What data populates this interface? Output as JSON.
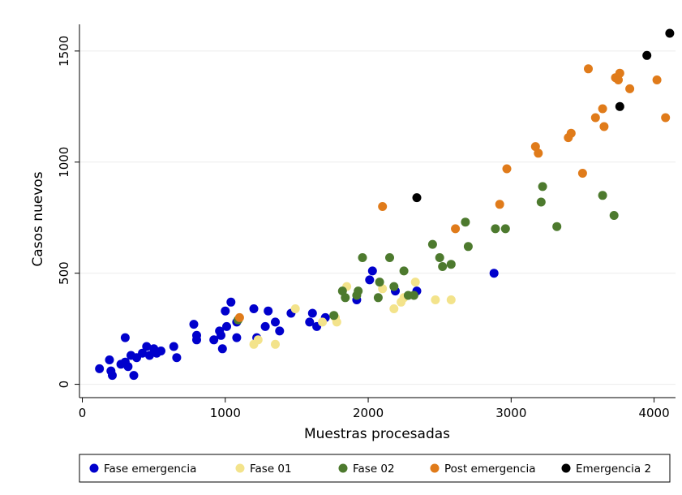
{
  "chart_data": {
    "type": "scatter",
    "title": "",
    "xlabel": "Muestras procesadas",
    "ylabel": "Casos nuevos",
    "xlim": [
      -20,
      4150
    ],
    "ylim": [
      -60,
      1620
    ],
    "xticks": [
      0,
      1000,
      2000,
      3000,
      4000
    ],
    "yticks": [
      0,
      500,
      1000,
      1500
    ],
    "grid": true,
    "legend_position": "bottom",
    "series": [
      {
        "name": "Fase emergencia",
        "color": "#0000cc",
        "points": [
          [
            120,
            70
          ],
          [
            190,
            110
          ],
          [
            200,
            60
          ],
          [
            210,
            40
          ],
          [
            270,
            90
          ],
          [
            300,
            210
          ],
          [
            300,
            100
          ],
          [
            320,
            80
          ],
          [
            340,
            130
          ],
          [
            360,
            40
          ],
          [
            380,
            120
          ],
          [
            420,
            140
          ],
          [
            450,
            170
          ],
          [
            470,
            130
          ],
          [
            500,
            160
          ],
          [
            520,
            140
          ],
          [
            550,
            150
          ],
          [
            640,
            170
          ],
          [
            660,
            120
          ],
          [
            780,
            270
          ],
          [
            800,
            220
          ],
          [
            800,
            200
          ],
          [
            920,
            200
          ],
          [
            960,
            240
          ],
          [
            970,
            220
          ],
          [
            980,
            160
          ],
          [
            1000,
            330
          ],
          [
            1010,
            260
          ],
          [
            1040,
            370
          ],
          [
            1080,
            280
          ],
          [
            1080,
            210
          ],
          [
            1200,
            340
          ],
          [
            1220,
            210
          ],
          [
            1280,
            260
          ],
          [
            1300,
            330
          ],
          [
            1350,
            280
          ],
          [
            1380,
            240
          ],
          [
            1460,
            320
          ],
          [
            1590,
            280
          ],
          [
            1610,
            320
          ],
          [
            1640,
            260
          ],
          [
            1700,
            300
          ],
          [
            1920,
            380
          ],
          [
            2010,
            470
          ],
          [
            2030,
            510
          ],
          [
            2190,
            420
          ],
          [
            2340,
            420
          ],
          [
            2880,
            500
          ]
        ]
      },
      {
        "name": "Fase 01",
        "color": "#f3e38b",
        "points": [
          [
            1200,
            180
          ],
          [
            1230,
            200
          ],
          [
            1350,
            180
          ],
          [
            1490,
            340
          ],
          [
            1680,
            280
          ],
          [
            1770,
            300
          ],
          [
            1780,
            280
          ],
          [
            1850,
            440
          ],
          [
            2100,
            430
          ],
          [
            2180,
            340
          ],
          [
            2230,
            370
          ],
          [
            2250,
            390
          ],
          [
            2330,
            460
          ],
          [
            2470,
            380
          ],
          [
            2580,
            380
          ]
        ]
      },
      {
        "name": "Fase 02",
        "color": "#4d7a2e",
        "points": [
          [
            1090,
            290
          ],
          [
            1760,
            310
          ],
          [
            1820,
            420
          ],
          [
            1840,
            390
          ],
          [
            1920,
            400
          ],
          [
            1930,
            420
          ],
          [
            1960,
            570
          ],
          [
            2070,
            390
          ],
          [
            2080,
            460
          ],
          [
            2150,
            570
          ],
          [
            2180,
            440
          ],
          [
            2250,
            510
          ],
          [
            2280,
            400
          ],
          [
            2320,
            400
          ],
          [
            2450,
            630
          ],
          [
            2500,
            570
          ],
          [
            2520,
            530
          ],
          [
            2580,
            540
          ],
          [
            2680,
            730
          ],
          [
            2700,
            620
          ],
          [
            2890,
            700
          ],
          [
            2960,
            700
          ],
          [
            3210,
            820
          ],
          [
            3220,
            890
          ],
          [
            3320,
            710
          ],
          [
            3640,
            850
          ],
          [
            3720,
            760
          ]
        ]
      },
      {
        "name": "Post emergencia",
        "color": "#e07b1a",
        "points": [
          [
            1100,
            300
          ],
          [
            2100,
            800
          ],
          [
            2610,
            700
          ],
          [
            2920,
            810
          ],
          [
            2970,
            970
          ],
          [
            3170,
            1070
          ],
          [
            3190,
            1040
          ],
          [
            3400,
            1110
          ],
          [
            3420,
            1130
          ],
          [
            3500,
            950
          ],
          [
            3540,
            1420
          ],
          [
            3590,
            1200
          ],
          [
            3640,
            1240
          ],
          [
            3650,
            1160
          ],
          [
            3730,
            1380
          ],
          [
            3750,
            1370
          ],
          [
            3760,
            1400
          ],
          [
            3830,
            1330
          ],
          [
            4020,
            1370
          ],
          [
            4080,
            1200
          ]
        ]
      },
      {
        "name": "Emergencia 2",
        "color": "#000000",
        "points": [
          [
            2340,
            840
          ],
          [
            3760,
            1250
          ],
          [
            3950,
            1480
          ],
          [
            4110,
            1580
          ]
        ]
      }
    ]
  }
}
